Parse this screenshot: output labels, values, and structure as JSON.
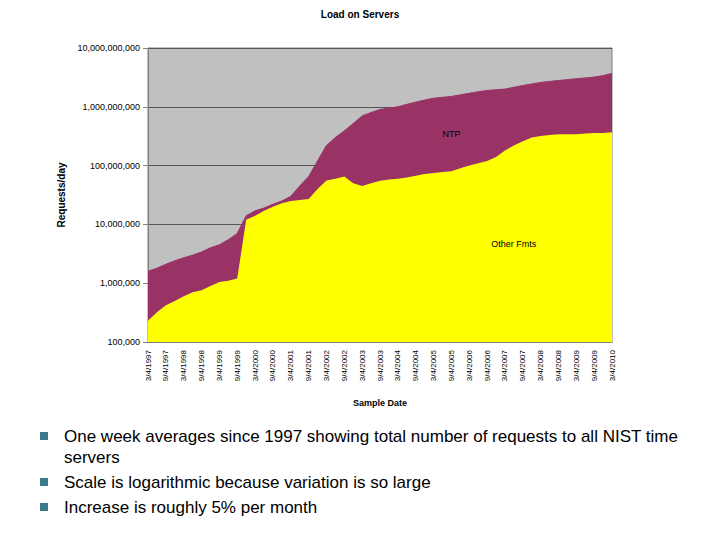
{
  "chart_data": {
    "type": "area",
    "title": "Load on Servers",
    "x_label": "Sample Date",
    "y_label": "Requests/day",
    "categories": [
      "3/4/1997",
      null,
      "9/4/1997",
      null,
      "3/4/1998",
      null,
      "9/4/1998",
      null,
      "3/4/1999",
      null,
      "9/4/1999",
      null,
      "3/4/2000",
      null,
      "9/4/2000",
      null,
      "3/4/2001",
      null,
      "9/4/2001",
      null,
      "3/4/2002",
      null,
      "9/4/2002",
      null,
      "3/4/2003",
      null,
      "9/4/2003",
      null,
      "3/4/2004",
      null,
      "9/4/2004",
      null,
      "3/4/2005",
      null,
      "9/4/2005",
      null,
      "3/4/2006",
      null,
      "9/4/2006",
      null,
      "3/4/2007",
      null,
      "9/4/2007",
      null,
      "3/4/2008",
      null,
      "9/4/2008",
      null,
      "3/4/2009",
      null,
      "9/4/2009",
      null,
      "3/4/2010"
    ],
    "series": [
      {
        "name": "Other Fmts",
        "color": "#ffff00",
        "values": [
          230000,
          320000,
          420000,
          500000,
          600000,
          700000,
          760000,
          900000,
          1050000,
          1100000,
          1200000,
          12000000,
          14000000,
          17000000,
          20000000,
          23000000,
          25000000,
          26000000,
          27000000,
          40000000,
          56000000,
          60000000,
          65000000,
          50000000,
          45000000,
          50000000,
          55000000,
          58000000,
          60000000,
          63000000,
          67000000,
          72000000,
          75000000,
          78000000,
          80000000,
          90000000,
          100000000,
          110000000,
          120000000,
          140000000,
          180000000,
          220000000,
          260000000,
          300000000,
          320000000,
          330000000,
          340000000,
          340000000,
          340000000,
          350000000,
          360000000,
          360000000,
          370000000
        ]
      },
      {
        "name": "NTP",
        "color": "#993366",
        "values": [
          1370000,
          1480000,
          1680000,
          1900000,
          2100000,
          2300000,
          2640000,
          3100000,
          3450000,
          4400000,
          5800000,
          2000000,
          3000000,
          2000000,
          2000000,
          2000000,
          5000000,
          19000000,
          38000000,
          80000000,
          164000000,
          240000000,
          325000000,
          470000000,
          655000000,
          750000000,
          845000000,
          892000000,
          940000000,
          1037000000,
          1133000000,
          1228000000,
          1325000000,
          1372000000,
          1420000000,
          1510000000,
          1600000000,
          1690000000,
          1780000000,
          1810000000,
          1820000000,
          1930000000,
          2040000000,
          2150000000,
          2280000000,
          2370000000,
          2460000000,
          2560000000,
          2660000000,
          2750000000,
          2840000000,
          3040000000,
          3330000000
        ]
      }
    ],
    "ylim": [
      100000,
      10000000000
    ],
    "yticks": [
      {
        "value": 100000,
        "label": "100,000"
      },
      {
        "value": 1000000,
        "label": "1,000,000"
      },
      {
        "value": 10000000,
        "label": "10,000,000"
      },
      {
        "value": 100000000,
        "label": "100,000,000"
      },
      {
        "value": 1000000000,
        "label": "1,000,000,000"
      },
      {
        "value": 10000000000,
        "label": "10,000,000,000"
      }
    ],
    "log": "y",
    "grid": true,
    "stacked": true,
    "annotations": [
      "One week averages since 1997 showing total number of requests to all NIST time servers",
      "Scale is logarithmic because variation is so large",
      "Increase is roughly 5% per month"
    ]
  }
}
